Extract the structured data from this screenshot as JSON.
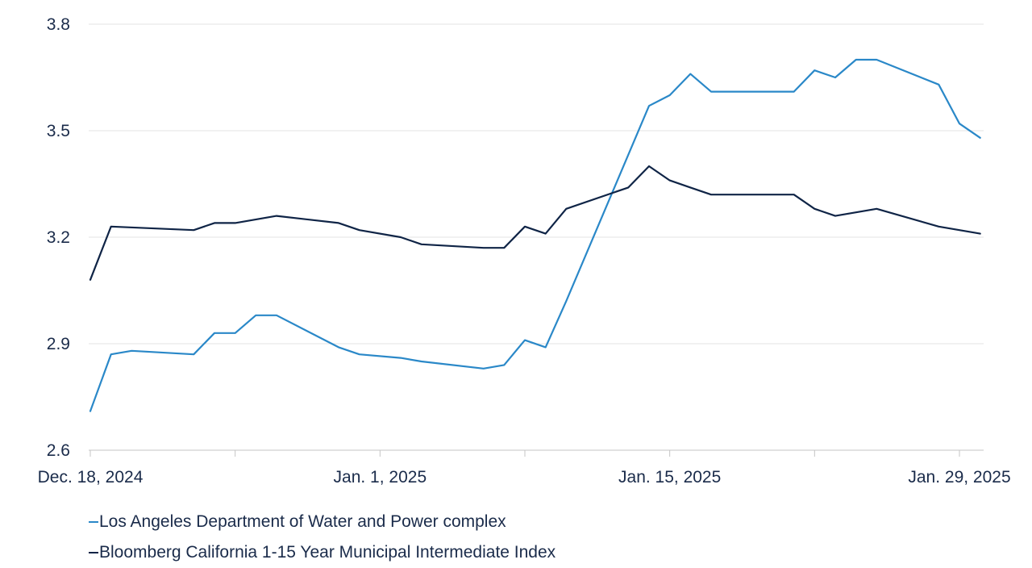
{
  "chart_data": {
    "type": "line",
    "title": "",
    "xlabel": "",
    "ylabel": "",
    "ylim": [
      2.6,
      3.8
    ],
    "y_ticks": [
      2.6,
      2.9,
      3.2,
      3.5,
      3.8
    ],
    "y_tick_labels": [
      "2.6",
      "2.9",
      "3.2",
      "3.5",
      "3.8"
    ],
    "xlim": [
      "2024-12-18",
      "2025-01-29"
    ],
    "x_tick_dates": [
      "2024-12-18",
      "2025-01-01",
      "2025-01-15",
      "2025-01-29"
    ],
    "x_tick_labels": [
      "Dec. 18, 2024",
      "Jan. 1, 2025",
      "Jan. 15, 2025",
      "Jan. 29, 2025"
    ],
    "x_minor_ticks": [
      "2024-12-25",
      "2025-01-08",
      "2025-01-22"
    ],
    "grid": "horizontal",
    "legend_position": "bottom-left",
    "series": [
      {
        "name": "Los Angeles Department of Water and Power complex",
        "color": "#2a88c8",
        "points": [
          [
            "2024-12-18",
            2.71
          ],
          [
            "2024-12-19",
            2.87
          ],
          [
            "2024-12-20",
            2.88
          ],
          [
            "2024-12-23",
            2.87
          ],
          [
            "2024-12-24",
            2.93
          ],
          [
            "2024-12-25",
            2.93
          ],
          [
            "2024-12-26",
            2.98
          ],
          [
            "2024-12-27",
            2.98
          ],
          [
            "2024-12-30",
            2.89
          ],
          [
            "2024-12-31",
            2.87
          ],
          [
            "2025-01-02",
            2.86
          ],
          [
            "2025-01-03",
            2.85
          ],
          [
            "2025-01-06",
            2.83
          ],
          [
            "2025-01-07",
            2.84
          ],
          [
            "2025-01-08",
            2.91
          ],
          [
            "2025-01-09",
            2.89
          ],
          [
            "2025-01-10",
            3.02
          ],
          [
            "2025-01-14",
            3.57
          ],
          [
            "2025-01-15",
            3.6
          ],
          [
            "2025-01-16",
            3.66
          ],
          [
            "2025-01-17",
            3.61
          ],
          [
            "2025-01-21",
            3.61
          ],
          [
            "2025-01-22",
            3.67
          ],
          [
            "2025-01-23",
            3.65
          ],
          [
            "2025-01-24",
            3.7
          ],
          [
            "2025-01-25",
            3.7
          ],
          [
            "2025-01-28",
            3.63
          ],
          [
            "2025-01-29",
            3.52
          ],
          [
            "2025-01-30",
            3.48
          ]
        ]
      },
      {
        "name": "Bloomberg California 1-15 Year Municipal Intermediate Index",
        "color": "#0f2446",
        "points": [
          [
            "2024-12-18",
            3.08
          ],
          [
            "2024-12-19",
            3.23
          ],
          [
            "2024-12-23",
            3.22
          ],
          [
            "2024-12-24",
            3.24
          ],
          [
            "2024-12-25",
            3.24
          ],
          [
            "2024-12-27",
            3.26
          ],
          [
            "2024-12-30",
            3.24
          ],
          [
            "2024-12-31",
            3.22
          ],
          [
            "2025-01-02",
            3.2
          ],
          [
            "2025-01-03",
            3.18
          ],
          [
            "2025-01-06",
            3.17
          ],
          [
            "2025-01-07",
            3.17
          ],
          [
            "2025-01-08",
            3.23
          ],
          [
            "2025-01-09",
            3.21
          ],
          [
            "2025-01-10",
            3.28
          ],
          [
            "2025-01-13",
            3.34
          ],
          [
            "2025-01-14",
            3.4
          ],
          [
            "2025-01-15",
            3.36
          ],
          [
            "2025-01-16",
            3.34
          ],
          [
            "2025-01-17",
            3.32
          ],
          [
            "2025-01-21",
            3.32
          ],
          [
            "2025-01-22",
            3.28
          ],
          [
            "2025-01-23",
            3.26
          ],
          [
            "2025-01-24",
            3.27
          ],
          [
            "2025-01-25",
            3.28
          ],
          [
            "2025-01-28",
            3.23
          ],
          [
            "2025-01-29",
            3.22
          ],
          [
            "2025-01-30",
            3.21
          ]
        ]
      }
    ]
  },
  "legend": {
    "items": [
      {
        "label": "Los Angeles Department of Water and Power complex",
        "color": "#2a88c8"
      },
      {
        "label": "Bloomberg California 1-15 Year Municipal Intermediate Index",
        "color": "#0f2446"
      }
    ]
  }
}
